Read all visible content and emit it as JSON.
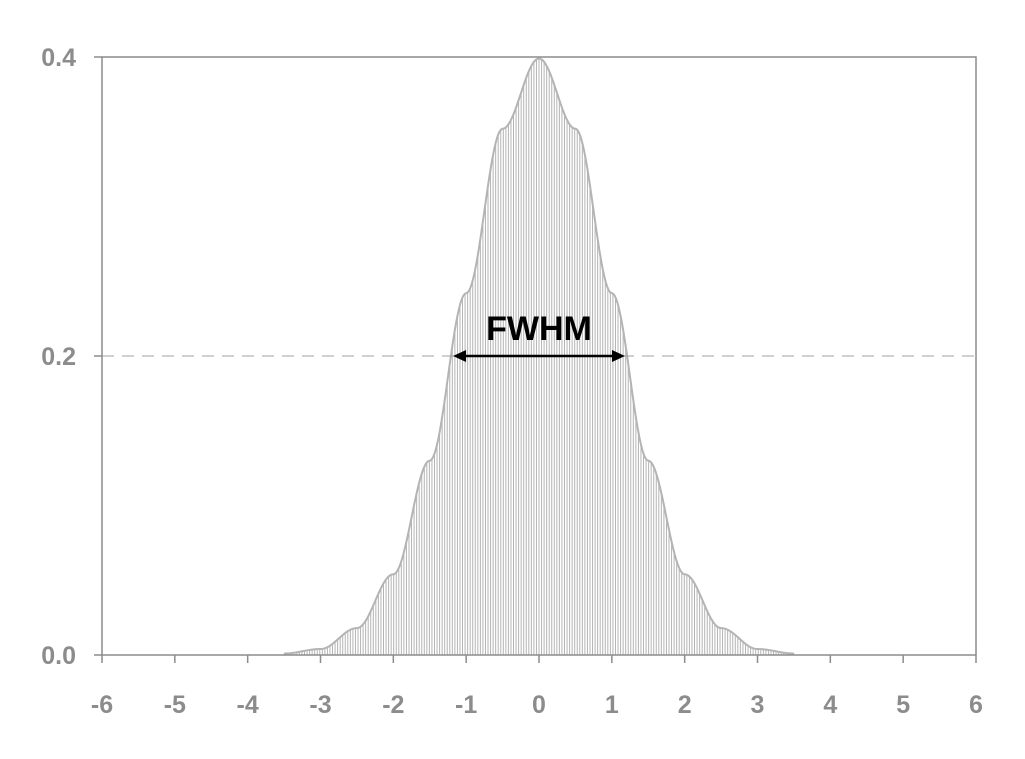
{
  "chart_data": {
    "type": "area",
    "title": "",
    "xlabel": "",
    "ylabel": "",
    "xlim": [
      -6,
      6
    ],
    "ylim": [
      0,
      0.4
    ],
    "x_ticks": [
      -6,
      -5,
      -4,
      -3,
      -2,
      -1,
      0,
      1,
      2,
      3,
      4,
      5,
      6
    ],
    "x_tick_labels": [
      "-6",
      "-5",
      "-4",
      "-3",
      "-2",
      "-1",
      "0",
      "1",
      "2",
      "3",
      "4",
      "5",
      "6"
    ],
    "y_ticks": [
      0,
      0.2,
      0.4
    ],
    "y_tick_labels": [
      "0.0",
      "0.2",
      "0.4"
    ],
    "grid": false,
    "legend": "none",
    "series": [
      {
        "x": [
          -3.5,
          -3.0,
          -2.5,
          -2.0,
          -1.5,
          -1.0,
          -0.5,
          0.0,
          0.5,
          1.0,
          1.5,
          2.0,
          2.5,
          3.0,
          3.5
        ],
        "values": [
          0.001,
          0.004,
          0.018,
          0.054,
          0.13,
          0.242,
          0.352,
          0.399,
          0.352,
          0.242,
          0.13,
          0.054,
          0.018,
          0.004,
          0.001
        ]
      }
    ],
    "reference_line": {
      "y": 0.2,
      "style": "dashed"
    },
    "annotation": {
      "text": "FWHM",
      "x_start": -1.18,
      "x_end": 1.18,
      "y": 0.2
    },
    "colors": {
      "fill_hatch": "#b4b4b4",
      "curve": "#b4b4b4",
      "axis": "#8c8c8c",
      "tick_text": "#8c8c8c",
      "dashed_line": "#a0a0a0",
      "annotation": "#000000"
    }
  }
}
